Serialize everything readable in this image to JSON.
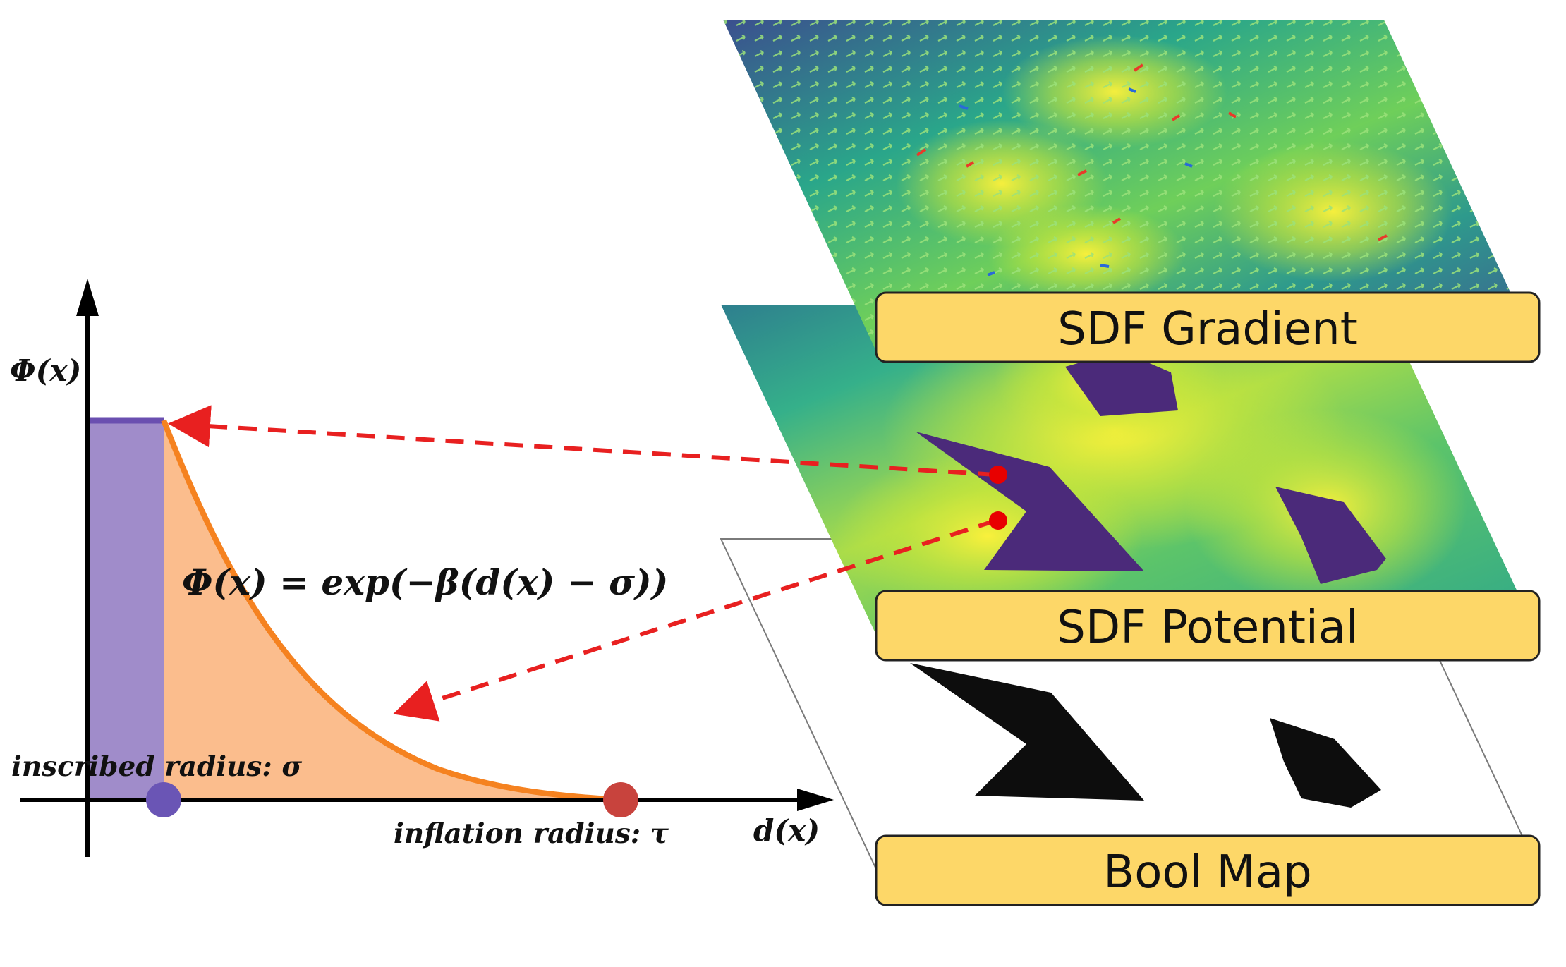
{
  "plot": {
    "y_axis_label": "Φ(x)",
    "x_axis_label": "d(x)",
    "formula": "Φ(x) = exp(−β(d(x) − σ))",
    "inscribed_label": "inscribed radius: σ",
    "inflation_label": "inflation radius: τ"
  },
  "layers": {
    "gradient_label": "SDF Gradient",
    "potential_label": "SDF Potential",
    "boolmap_label": "Bool Map"
  },
  "colors": {
    "purple_fill": "#a08cca",
    "purple_line": "#6a4fb0",
    "orange_fill": "#fbbd8d",
    "orange_curve": "#f58220",
    "marker_sigma": "#6a55b5",
    "marker_tau": "#c8433d",
    "arrow_red": "#e82020",
    "label_box": "#fdd768"
  }
}
